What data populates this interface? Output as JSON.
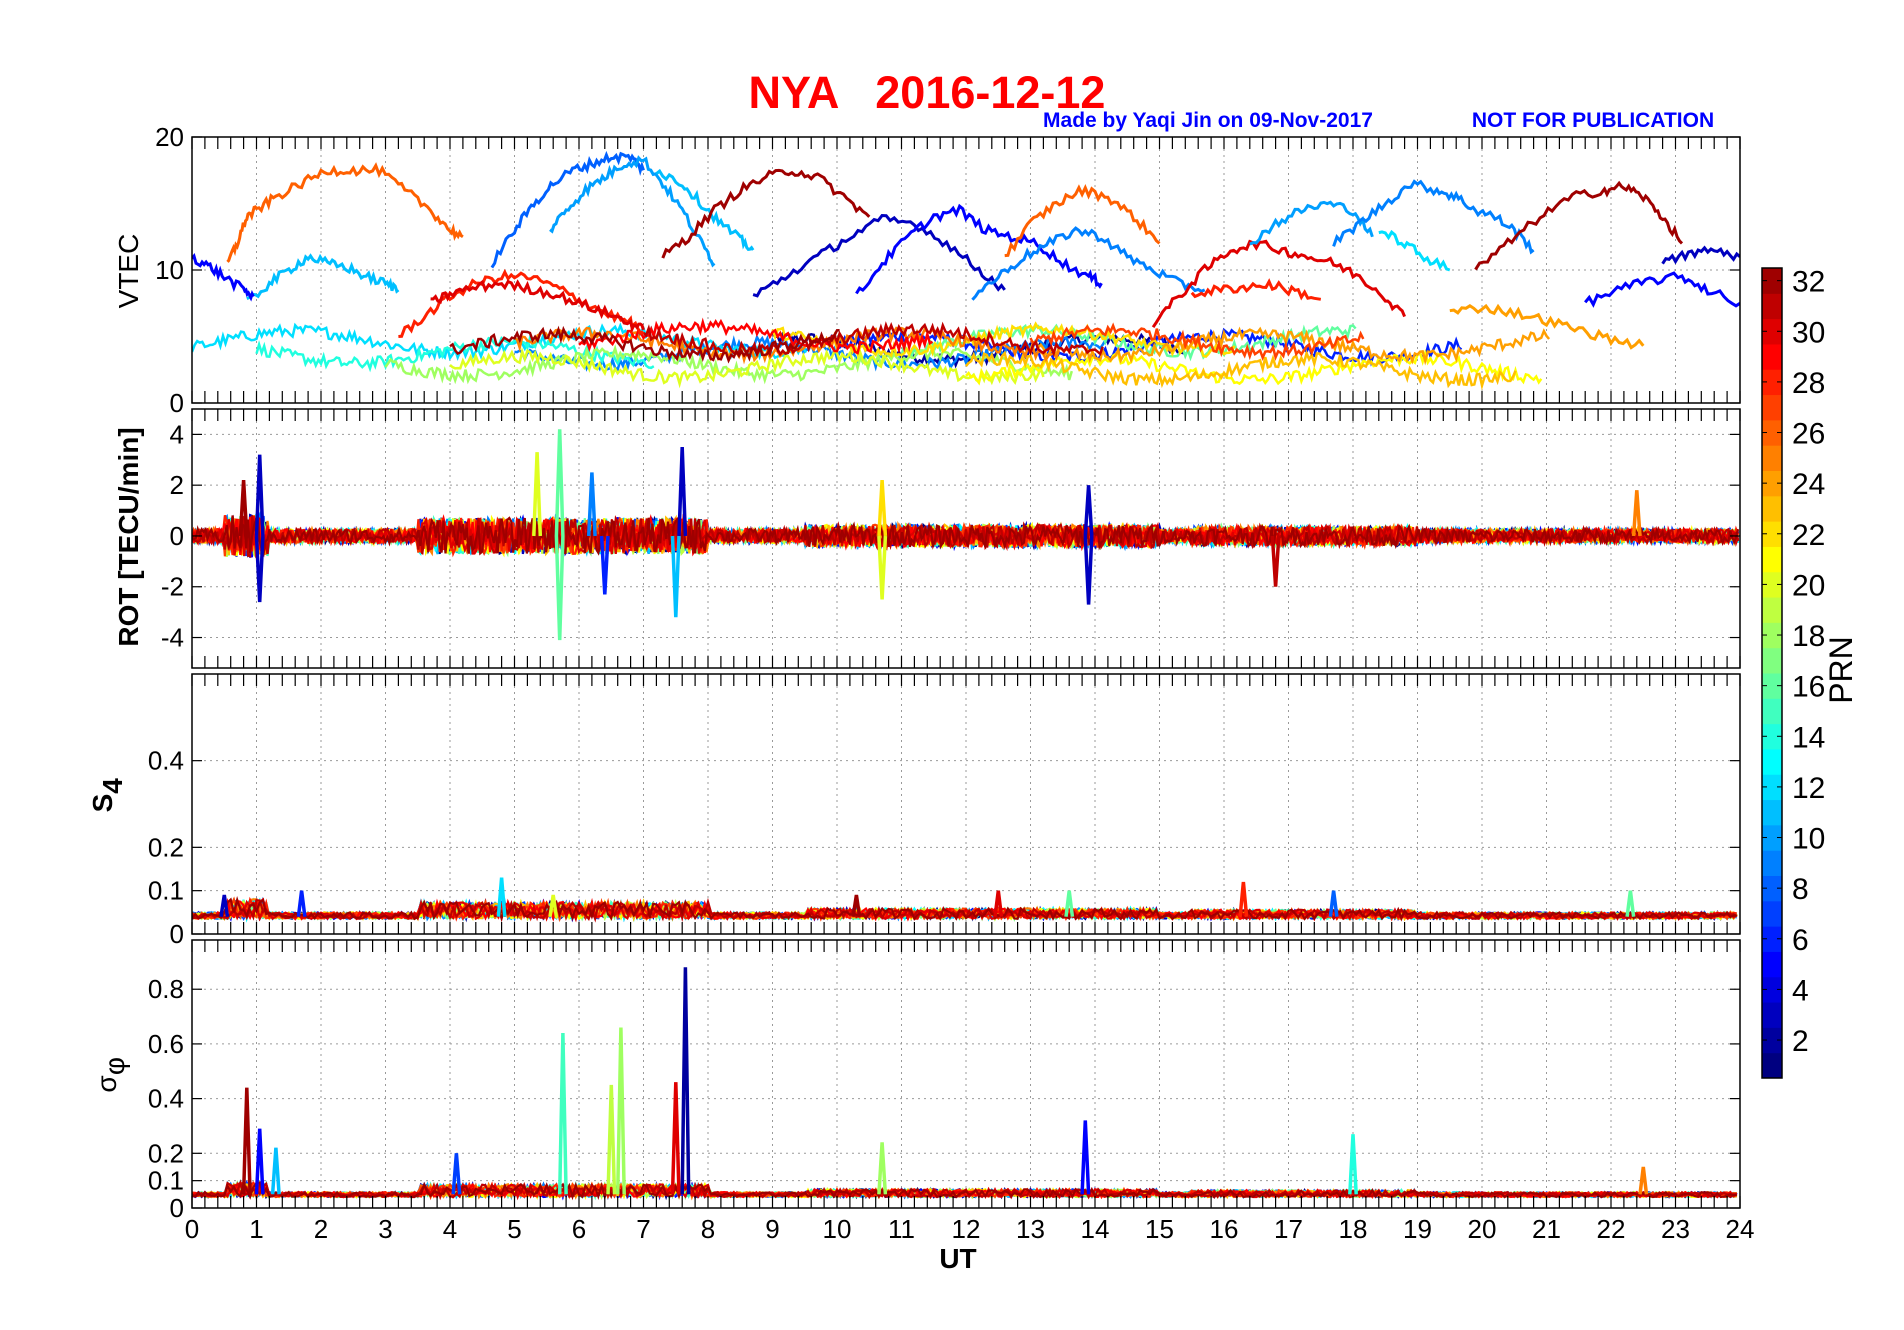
{
  "header": {
    "title": "NYA   2016-12-12",
    "credit": "Made by Yaqi Jin on 09-Nov-2017",
    "notice": "NOT FOR PUBLICATION"
  },
  "colors": {
    "title": "#ff0000",
    "credit": "#0000ff",
    "colormap": "jet"
  },
  "chart_data": [
    {
      "type": "line",
      "panel": "vtec",
      "ylabel": "VTEC",
      "xlabel": "",
      "xlim": [
        0,
        24
      ],
      "ylim": [
        0,
        20
      ],
      "yticks": [
        "0",
        "10",
        "20"
      ],
      "grid": true,
      "series": [
        {
          "prn": 26,
          "x": [
            0.55,
            0.7,
            0.85,
            1.0,
            1.3,
            1.7,
            2.1,
            2.5,
            2.9,
            3.3,
            3.7,
            4.0,
            4.2
          ],
          "y": [
            10.5,
            12,
            14,
            14.5,
            15.5,
            16.5,
            17.5,
            17.5,
            17.5,
            16,
            14.5,
            13,
            12.5
          ]
        },
        {
          "prn": 11,
          "x": [
            0.85,
            1.2,
            1.5,
            1.8,
            2.1,
            2.4,
            2.7,
            3.0,
            3.2
          ],
          "y": [
            7.5,
            9,
            10,
            11,
            10.5,
            10.2,
            9.5,
            9,
            8.5
          ]
        },
        {
          "prn": 5,
          "x": [
            0.0,
            0.25,
            0.5,
            0.8,
            0.95
          ],
          "y": [
            11,
            10.3,
            9.5,
            8.5,
            8
          ]
        },
        {
          "prn": 28,
          "x": [
            3.2,
            3.6,
            4.0,
            4.4,
            4.8,
            5.2,
            5.6,
            6.0,
            6.4,
            6.8,
            7.0
          ],
          "y": [
            5,
            6.5,
            8,
            9,
            9.5,
            9.5,
            8.8,
            7.8,
            6.8,
            6,
            5.2
          ]
        },
        {
          "prn": 30,
          "x": [
            3.7,
            4.0,
            4.4,
            4.8,
            5.2,
            5.6,
            6.0,
            6.4,
            6.8,
            7.0
          ],
          "y": [
            7.5,
            8.2,
            8.7,
            9.0,
            8.6,
            8.2,
            7.5,
            6.8,
            6.0,
            5.5
          ]
        },
        {
          "prn": 8,
          "x": [
            4.65,
            5.0,
            5.3,
            5.6,
            5.9,
            6.2,
            6.5,
            6.8,
            7.0
          ],
          "y": [
            10.5,
            13,
            15,
            16.5,
            17.5,
            18,
            18.5,
            18.5,
            17.5
          ]
        },
        {
          "prn": 10,
          "x": [
            5.55,
            5.8,
            6.1,
            6.4,
            6.7,
            7.0,
            7.3,
            7.6,
            7.9,
            8.1
          ],
          "y": [
            13,
            14.5,
            16,
            17,
            18,
            18.3,
            16.5,
            14.5,
            12,
            10.5
          ]
        },
        {
          "prn": 11,
          "x": [
            7.2,
            7.6,
            7.9,
            8.2,
            8.5,
            8.7
          ],
          "y": [
            17.5,
            16.5,
            15,
            13.5,
            12.3,
            11.5
          ]
        },
        {
          "prn": 32,
          "x": [
            7.3,
            7.7,
            8.1,
            8.5,
            8.9,
            9.3,
            9.7,
            10.1,
            10.5
          ],
          "y": [
            11,
            12.5,
            14.5,
            16,
            17,
            17.5,
            17,
            15.5,
            14
          ]
        },
        {
          "prn": 3,
          "x": [
            8.7,
            9.2,
            9.7,
            10.2,
            10.7,
            11.2,
            11.7,
            12.2,
            12.6
          ],
          "y": [
            8,
            9.5,
            11,
            12.5,
            13.8,
            13.5,
            12,
            10,
            8.5
          ]
        },
        {
          "prn": 5,
          "x": [
            10.3,
            10.7,
            11.1,
            11.5,
            11.9,
            12.3,
            12.7,
            13.1,
            13.5,
            13.9,
            14.1
          ],
          "y": [
            8,
            10.5,
            12.5,
            14,
            14.5,
            13,
            12.5,
            12,
            10.5,
            9.5,
            9
          ]
        },
        {
          "prn": 9,
          "x": [
            12.1,
            12.5,
            12.9,
            13.3,
            13.7,
            14.1,
            14.5,
            14.9,
            15.3,
            15.7
          ],
          "y": [
            8,
            9.5,
            11,
            12,
            13,
            12.5,
            11,
            10,
            9,
            8.5
          ]
        },
        {
          "prn": 26,
          "x": [
            12.6,
            13.0,
            13.4,
            13.8,
            14.2,
            14.6,
            15.0
          ],
          "y": [
            11,
            13.5,
            15,
            16,
            15.5,
            14,
            12
          ]
        },
        {
          "prn": 30,
          "x": [
            14.9,
            15.3,
            15.7,
            16.1,
            16.5,
            16.9,
            17.3,
            17.7,
            18.1,
            18.5,
            18.8
          ],
          "y": [
            6,
            8,
            10,
            11.5,
            12,
            11.5,
            11,
            10.5,
            9.5,
            8,
            6.5
          ]
        },
        {
          "prn": 10,
          "x": [
            16.4,
            16.8,
            17.2,
            17.6,
            18.0,
            18.3
          ],
          "y": [
            12,
            13.5,
            14.5,
            15,
            14.5,
            12.5
          ]
        },
        {
          "prn": 9,
          "x": [
            17.7,
            18.1,
            18.5,
            18.9,
            19.3,
            19.6,
            19.9,
            20.2,
            20.5,
            20.8
          ],
          "y": [
            12,
            13.5,
            15,
            16.5,
            16,
            15.5,
            14.5,
            14,
            13,
            11.5
          ]
        },
        {
          "prn": 12,
          "x": [
            18.4,
            18.8,
            19.1,
            19.5
          ],
          "y": [
            13,
            12,
            11,
            10
          ]
        },
        {
          "prn": 28,
          "x": [
            15.5,
            15.9,
            16.3,
            16.7,
            17.1,
            17.5
          ],
          "y": [
            8.2,
            8.5,
            8.7,
            8.9,
            8.4,
            7.8
          ]
        },
        {
          "prn": 32,
          "x": [
            19.9,
            20.4,
            20.9,
            21.4,
            21.9,
            22.2,
            22.5,
            22.8,
            23.1
          ],
          "y": [
            10,
            12,
            14,
            15.5,
            16,
            16.3,
            15.5,
            14,
            12
          ]
        },
        {
          "prn": 5,
          "x": [
            21.6,
            22.1,
            22.6,
            23.1,
            23.5,
            24.0
          ],
          "y": [
            7.5,
            8.5,
            9.2,
            9.5,
            8.5,
            7.5
          ]
        },
        {
          "prn": 3,
          "x": [
            22.8,
            23.2,
            23.6,
            24.0
          ],
          "y": [
            10.5,
            11.2,
            11.5,
            11
          ]
        },
        {
          "prn": 24,
          "x": [
            19.5,
            20.0,
            20.5,
            21.0,
            21.5,
            22.0,
            22.5
          ],
          "y": [
            6.8,
            7.2,
            6.8,
            6.2,
            5.5,
            4.8,
            4.3
          ]
        }
      ]
    },
    {
      "type": "line",
      "panel": "rot",
      "ylabel": "ROT [TECU/min]",
      "xlim": [
        0,
        24
      ],
      "ylim": [
        -5.2,
        5
      ],
      "yticks": [
        "-4",
        "-2",
        "0",
        "2",
        "4"
      ],
      "grid": true,
      "peaks": [
        {
          "prn": 32,
          "x": 0.8,
          "y": 2.2
        },
        {
          "prn": 3,
          "x": 1.05,
          "y": 3.2
        },
        {
          "prn": 3,
          "x": 1.05,
          "y": -2.6
        },
        {
          "prn": 20,
          "x": 5.35,
          "y": 3.3
        },
        {
          "prn": 16,
          "x": 5.7,
          "y": 4.2
        },
        {
          "prn": 16,
          "x": 5.7,
          "y": -4.1
        },
        {
          "prn": 9,
          "x": 6.2,
          "y": 2.5
        },
        {
          "prn": 6,
          "x": 6.4,
          "y": -2.3
        },
        {
          "prn": 3,
          "x": 7.6,
          "y": 3.5
        },
        {
          "prn": 11,
          "x": 7.5,
          "y": -3.2
        },
        {
          "prn": 22,
          "x": 10.7,
          "y": 2.2
        },
        {
          "prn": 20,
          "x": 10.7,
          "y": -2.5
        },
        {
          "prn": 3,
          "x": 13.9,
          "y": 2.0
        },
        {
          "prn": 3,
          "x": 13.9,
          "y": -2.7
        },
        {
          "prn": 25,
          "x": 22.4,
          "y": 1.8
        },
        {
          "prn": 31,
          "x": 16.8,
          "y": -2.0
        }
      ]
    },
    {
      "type": "line",
      "panel": "s4",
      "ylabel": "S4",
      "xlim": [
        0,
        24
      ],
      "ylim": [
        0,
        0.6
      ],
      "yticks": [
        "0",
        "0.1",
        "0.2",
        "0.4"
      ],
      "grid": true,
      "peaks": [
        {
          "prn": 3,
          "x": 0.5,
          "y": 0.09
        },
        {
          "prn": 6,
          "x": 1.7,
          "y": 0.1
        },
        {
          "prn": 12,
          "x": 4.8,
          "y": 0.13
        },
        {
          "prn": 20,
          "x": 5.6,
          "y": 0.09
        },
        {
          "prn": 32,
          "x": 10.3,
          "y": 0.09
        },
        {
          "prn": 30,
          "x": 12.5,
          "y": 0.1
        },
        {
          "prn": 16,
          "x": 13.6,
          "y": 0.1
        },
        {
          "prn": 28,
          "x": 16.3,
          "y": 0.12
        },
        {
          "prn": 8,
          "x": 17.7,
          "y": 0.1
        },
        {
          "prn": 16,
          "x": 22.3,
          "y": 0.1
        }
      ]
    },
    {
      "type": "line",
      "panel": "sigma_phi",
      "ylabel": "σφ",
      "xlabel": "UT",
      "xlim": [
        0,
        24
      ],
      "ylim": [
        0,
        0.98
      ],
      "xticks": [
        "0",
        "1",
        "2",
        "3",
        "4",
        "5",
        "6",
        "7",
        "8",
        "9",
        "10",
        "11",
        "12",
        "13",
        "14",
        "15",
        "16",
        "17",
        "18",
        "19",
        "20",
        "21",
        "22",
        "23",
        "24"
      ],
      "yticks": [
        "0",
        "0.1",
        "0.2",
        "0.4",
        "0.6",
        "0.8"
      ],
      "grid": true,
      "peaks": [
        {
          "prn": 32,
          "x": 0.85,
          "y": 0.44
        },
        {
          "prn": 5,
          "x": 1.05,
          "y": 0.29
        },
        {
          "prn": 11,
          "x": 1.3,
          "y": 0.22
        },
        {
          "prn": 7,
          "x": 4.1,
          "y": 0.2
        },
        {
          "prn": 15,
          "x": 5.75,
          "y": 0.64
        },
        {
          "prn": 18,
          "x": 6.65,
          "y": 0.66
        },
        {
          "prn": 19,
          "x": 6.5,
          "y": 0.45
        },
        {
          "prn": 30,
          "x": 7.5,
          "y": 0.46
        },
        {
          "prn": 2,
          "x": 7.65,
          "y": 0.88
        },
        {
          "prn": 18,
          "x": 10.7,
          "y": 0.24
        },
        {
          "prn": 5,
          "x": 13.85,
          "y": 0.32
        },
        {
          "prn": 14,
          "x": 18.0,
          "y": 0.27
        },
        {
          "prn": 25,
          "x": 22.5,
          "y": 0.15
        }
      ]
    }
  ],
  "colorbar": {
    "label": "PRN",
    "range": [
      1,
      33
    ],
    "ticks": [
      "2",
      "4",
      "6",
      "8",
      "10",
      "12",
      "14",
      "16",
      "18",
      "20",
      "22",
      "24",
      "26",
      "28",
      "30",
      "32"
    ]
  }
}
